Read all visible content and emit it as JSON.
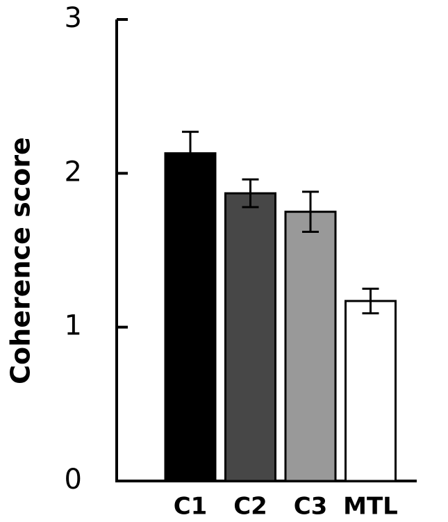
{
  "chart_data": {
    "type": "bar",
    "y_label": "Coherence score",
    "categories": [
      "C1",
      "C2",
      "C3",
      "MTL"
    ],
    "values": [
      2.13,
      1.87,
      1.75,
      1.17
    ],
    "errors": [
      0.14,
      0.09,
      0.13,
      0.08
    ],
    "colors": [
      "#000000",
      "#474747",
      "#999999",
      "#ffffff"
    ],
    "ylim": [
      0,
      3
    ],
    "yticks": [
      0,
      1,
      2,
      3
    ],
    "grid": false
  }
}
